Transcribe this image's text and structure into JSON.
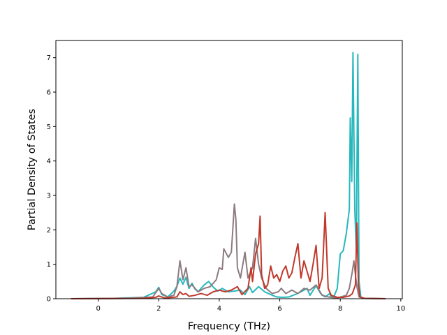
{
  "chart_data": {
    "type": "line",
    "title": "",
    "xlabel": "Frequency (THz)",
    "ylabel": "Partial Density of States",
    "xlim": [
      -1.4,
      10.05
    ],
    "ylim": [
      0,
      7.5
    ],
    "xticks": [
      0,
      2,
      4,
      6,
      8,
      10
    ],
    "yticks": [
      0,
      1,
      2,
      3,
      4,
      5,
      6,
      7
    ],
    "grid": false,
    "legend": "none",
    "series": [
      {
        "color": "#26b8bd",
        "points": [
          [
            -0.9,
            0
          ],
          [
            0.5,
            0.01
          ],
          [
            1.5,
            0.04
          ],
          [
            1.9,
            0.2
          ],
          [
            2.0,
            0.33
          ],
          [
            2.1,
            0.12
          ],
          [
            2.3,
            0.05
          ],
          [
            2.5,
            0.22
          ],
          [
            2.6,
            0.36
          ],
          [
            2.7,
            0.6
          ],
          [
            2.8,
            0.42
          ],
          [
            2.9,
            0.62
          ],
          [
            3.0,
            0.3
          ],
          [
            3.1,
            0.45
          ],
          [
            3.2,
            0.28
          ],
          [
            3.3,
            0.2
          ],
          [
            3.5,
            0.4
          ],
          [
            3.65,
            0.5
          ],
          [
            3.8,
            0.34
          ],
          [
            3.95,
            0.22
          ],
          [
            4.1,
            0.3
          ],
          [
            4.3,
            0.2
          ],
          [
            4.5,
            0.22
          ],
          [
            4.7,
            0.25
          ],
          [
            4.85,
            0.12
          ],
          [
            5.0,
            0.35
          ],
          [
            5.1,
            0.18
          ],
          [
            5.3,
            0.35
          ],
          [
            5.5,
            0.2
          ],
          [
            5.7,
            0.12
          ],
          [
            5.9,
            0.05
          ],
          [
            6.1,
            0.04
          ],
          [
            6.3,
            0.05
          ],
          [
            6.5,
            0.12
          ],
          [
            6.7,
            0.2
          ],
          [
            6.9,
            0.3
          ],
          [
            7.0,
            0.1
          ],
          [
            7.2,
            0.38
          ],
          [
            7.35,
            0.15
          ],
          [
            7.5,
            0.05
          ],
          [
            7.65,
            0.15
          ],
          [
            7.7,
            0.04
          ],
          [
            7.8,
            0.08
          ],
          [
            7.9,
            0.3
          ],
          [
            8.0,
            1.3
          ],
          [
            8.1,
            1.4
          ],
          [
            8.2,
            1.9
          ],
          [
            8.3,
            2.6
          ],
          [
            8.33,
            5.25
          ],
          [
            8.38,
            3.4
          ],
          [
            8.42,
            7.15
          ],
          [
            8.48,
            2.6
          ],
          [
            8.53,
            1.4
          ],
          [
            8.58,
            7.1
          ],
          [
            8.62,
            0.5
          ],
          [
            8.68,
            0.05
          ],
          [
            8.8,
            0.01
          ],
          [
            9.5,
            0
          ]
        ]
      },
      {
        "color": "#8c7b80",
        "points": [
          [
            -0.9,
            0
          ],
          [
            1.0,
            0.01
          ],
          [
            1.8,
            0.05
          ],
          [
            2.0,
            0.3
          ],
          [
            2.1,
            0.15
          ],
          [
            2.3,
            0.05
          ],
          [
            2.5,
            0.1
          ],
          [
            2.6,
            0.35
          ],
          [
            2.7,
            1.1
          ],
          [
            2.8,
            0.55
          ],
          [
            2.9,
            0.9
          ],
          [
            3.0,
            0.35
          ],
          [
            3.1,
            0.4
          ],
          [
            3.3,
            0.2
          ],
          [
            3.5,
            0.3
          ],
          [
            3.7,
            0.35
          ],
          [
            3.9,
            0.55
          ],
          [
            4.0,
            0.9
          ],
          [
            4.1,
            0.85
          ],
          [
            4.15,
            1.45
          ],
          [
            4.3,
            1.2
          ],
          [
            4.4,
            1.35
          ],
          [
            4.5,
            2.75
          ],
          [
            4.55,
            2.3
          ],
          [
            4.6,
            0.9
          ],
          [
            4.7,
            0.6
          ],
          [
            4.85,
            1.35
          ],
          [
            4.95,
            0.6
          ],
          [
            5.1,
            0.9
          ],
          [
            5.2,
            1.75
          ],
          [
            5.3,
            1.0
          ],
          [
            5.4,
            0.6
          ],
          [
            5.55,
            0.3
          ],
          [
            5.75,
            0.15
          ],
          [
            5.95,
            0.2
          ],
          [
            6.05,
            0.3
          ],
          [
            6.2,
            0.15
          ],
          [
            6.4,
            0.25
          ],
          [
            6.6,
            0.15
          ],
          [
            6.8,
            0.3
          ],
          [
            7.0,
            0.25
          ],
          [
            7.2,
            0.4
          ],
          [
            7.4,
            0.1
          ],
          [
            7.6,
            0.05
          ],
          [
            7.9,
            0.02
          ],
          [
            8.2,
            0.1
          ],
          [
            8.3,
            0.3
          ],
          [
            8.4,
            0.8
          ],
          [
            8.45,
            1.1
          ],
          [
            8.5,
            0.7
          ],
          [
            8.55,
            0.35
          ],
          [
            8.62,
            0.05
          ],
          [
            8.8,
            0.01
          ],
          [
            9.5,
            0
          ]
        ]
      },
      {
        "color": "#c0392b",
        "points": [
          [
            -0.9,
            0
          ],
          [
            1.5,
            0.01
          ],
          [
            1.9,
            0.04
          ],
          [
            2.0,
            0.08
          ],
          [
            2.2,
            0.02
          ],
          [
            2.6,
            0.05
          ],
          [
            2.7,
            0.2
          ],
          [
            2.8,
            0.12
          ],
          [
            2.9,
            0.15
          ],
          [
            3.0,
            0.07
          ],
          [
            3.2,
            0.1
          ],
          [
            3.4,
            0.15
          ],
          [
            3.6,
            0.1
          ],
          [
            3.8,
            0.2
          ],
          [
            4.0,
            0.25
          ],
          [
            4.2,
            0.2
          ],
          [
            4.4,
            0.25
          ],
          [
            4.6,
            0.35
          ],
          [
            4.75,
            0.12
          ],
          [
            4.95,
            0.3
          ],
          [
            5.05,
            0.9
          ],
          [
            5.1,
            0.5
          ],
          [
            5.2,
            1.3
          ],
          [
            5.3,
            1.6
          ],
          [
            5.35,
            2.4
          ],
          [
            5.4,
            0.7
          ],
          [
            5.5,
            0.3
          ],
          [
            5.6,
            0.4
          ],
          [
            5.7,
            0.95
          ],
          [
            5.8,
            0.6
          ],
          [
            5.9,
            0.7
          ],
          [
            6.0,
            0.5
          ],
          [
            6.1,
            0.8
          ],
          [
            6.2,
            0.95
          ],
          [
            6.3,
            0.6
          ],
          [
            6.4,
            0.75
          ],
          [
            6.5,
            1.2
          ],
          [
            6.6,
            1.6
          ],
          [
            6.7,
            0.6
          ],
          [
            6.8,
            1.1
          ],
          [
            6.9,
            0.8
          ],
          [
            7.0,
            0.5
          ],
          [
            7.1,
            1.0
          ],
          [
            7.2,
            1.55
          ],
          [
            7.3,
            0.3
          ],
          [
            7.4,
            0.6
          ],
          [
            7.5,
            2.5
          ],
          [
            7.6,
            0.3
          ],
          [
            7.7,
            0.1
          ],
          [
            7.9,
            0.04
          ],
          [
            8.1,
            0.04
          ],
          [
            8.3,
            0.08
          ],
          [
            8.4,
            0.15
          ],
          [
            8.5,
            0.4
          ],
          [
            8.55,
            2.2
          ],
          [
            8.6,
            0.4
          ],
          [
            8.65,
            0.05
          ],
          [
            8.8,
            0.01
          ],
          [
            9.5,
            0
          ]
        ]
      }
    ]
  }
}
